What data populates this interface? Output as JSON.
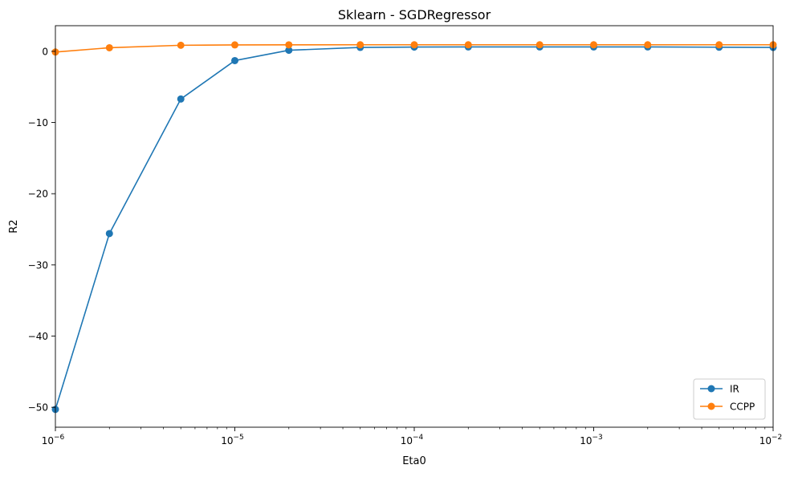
{
  "chart_data": {
    "type": "line",
    "title": "Sklearn - SGDRegressor",
    "xlabel": "Eta0",
    "ylabel": "R2",
    "xscale": "log",
    "xlim": [
      1e-06,
      0.01
    ],
    "ylim": [
      -52.8,
      3.6
    ],
    "xticks": [
      {
        "value": 1e-06,
        "base": "10",
        "exp": "−6"
      },
      {
        "value": 1e-05,
        "base": "10",
        "exp": "−5"
      },
      {
        "value": 0.0001,
        "base": "10",
        "exp": "−4"
      },
      {
        "value": 0.001,
        "base": "10",
        "exp": "−3"
      },
      {
        "value": 0.01,
        "base": "10",
        "exp": "−2"
      }
    ],
    "yticks": [
      {
        "value": 0,
        "label": "0"
      },
      {
        "value": -10,
        "label": "−10"
      },
      {
        "value": -20,
        "label": "−20"
      },
      {
        "value": -30,
        "label": "−30"
      },
      {
        "value": -40,
        "label": "−40"
      },
      {
        "value": -50,
        "label": "−50"
      }
    ],
    "x": [
      1e-06,
      2e-06,
      5e-06,
      1e-05,
      2e-05,
      5e-05,
      0.0001,
      0.0002,
      0.0005,
      0.001,
      0.002,
      0.005,
      0.01
    ],
    "series": [
      {
        "name": "IR",
        "color": "#1f77b4",
        "values": [
          -50.3,
          -25.6,
          -6.7,
          -1.3,
          0.15,
          0.55,
          0.6,
          0.62,
          0.62,
          0.62,
          0.62,
          0.58,
          0.55
        ]
      },
      {
        "name": "CCPP",
        "color": "#ff7f0e",
        "values": [
          -0.1,
          0.5,
          0.85,
          0.9,
          0.91,
          0.92,
          0.92,
          0.92,
          0.92,
          0.92,
          0.92,
          0.92,
          0.92
        ]
      }
    ],
    "legend_position": "lower-right",
    "grid": false,
    "marker": "circle"
  }
}
